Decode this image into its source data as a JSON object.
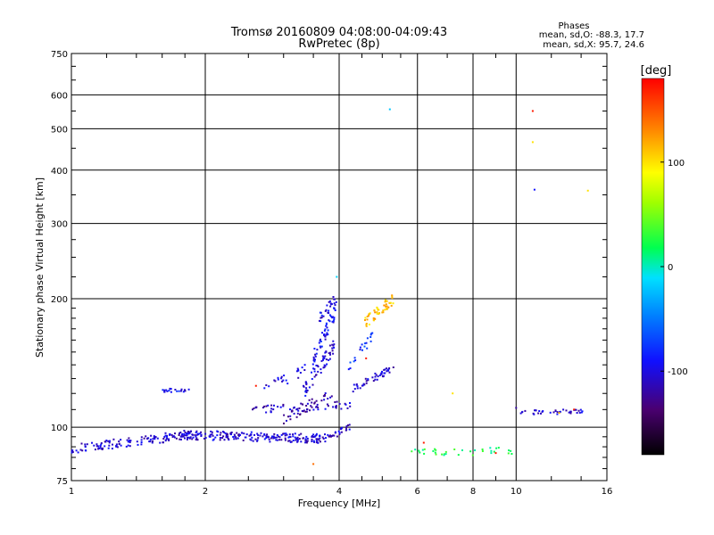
{
  "chart_data": {
    "type": "scatter",
    "title": "Tromsø 20160809 04:08:00-04:09:43",
    "subtitle": "RwPretec (8p)",
    "xlabel": "Frequency [MHz]",
    "ylabel": "Stationary phase Virtual Height [km]",
    "x_scale": "log",
    "y_scale": "log",
    "xlim": [
      1,
      16
    ],
    "ylim": [
      75,
      750
    ],
    "x_ticks": [
      1,
      2,
      4,
      6,
      8,
      10,
      16
    ],
    "x_tick_labels": [
      "1",
      "2",
      "4",
      "6",
      "8",
      "10",
      "16"
    ],
    "y_ticks": [
      75,
      100,
      200,
      300,
      400,
      500,
      600,
      750
    ],
    "y_tick_labels": [
      "75",
      "100",
      "200",
      "300",
      "400",
      "500",
      "600",
      "750"
    ],
    "grid": true,
    "stats": {
      "header": "Phases",
      "line_o": "mean, sd,O: -88.3, 17.7",
      "line_x": "mean, sd,X:  95.7, 24.6"
    },
    "colorbar": {
      "label": "[deg]",
      "range": [
        -180,
        180
      ],
      "ticks": [
        100,
        0,
        -100
      ],
      "tick_labels": [
        "100",
        "0",
        "-100"
      ]
    },
    "traces": [
      {
        "x": [
          1.0,
          1.85
        ],
        "y": [
          89,
          96
        ],
        "phase": -105,
        "n": 130,
        "yjit": 0.025
      },
      {
        "x": [
          1.75,
          3.8
        ],
        "y": [
          96,
          94
        ],
        "phase": -105,
        "n": 220,
        "yjit": 0.025
      },
      {
        "x": [
          3.8,
          4.25
        ],
        "y": [
          95,
          100
        ],
        "phase": -110,
        "n": 25,
        "yjit": 0.02
      },
      {
        "x": [
          1.6,
          1.85
        ],
        "y": [
          122,
          122
        ],
        "phase": -95,
        "n": 20,
        "yjit": 0.01
      },
      {
        "x": [
          2.55,
          4.3
        ],
        "y": [
          110,
          113
        ],
        "phase": -110,
        "n": 55,
        "yjit": 0.02
      },
      {
        "x": [
          2.7,
          3.5
        ],
        "y": [
          122,
          140
        ],
        "phase": -100,
        "n": 25,
        "yjit": 0.03
      },
      {
        "x": [
          3.0,
          3.9
        ],
        "y": [
          105,
          120
        ],
        "phase": -120,
        "n": 40,
        "yjit": 0.03
      },
      {
        "x": [
          3.3,
          3.9
        ],
        "y": [
          120,
          155
        ],
        "phase": -100,
        "n": 60,
        "yjit": 0.04
      },
      {
        "x": [
          3.5,
          3.95
        ],
        "y": [
          145,
          190
        ],
        "phase": -95,
        "n": 50,
        "yjit": 0.04
      },
      {
        "x": [
          3.6,
          3.95
        ],
        "y": [
          180,
          200
        ],
        "phase": -100,
        "n": 25,
        "yjit": 0.03
      },
      {
        "x": [
          4.3,
          5.3
        ],
        "y": [
          123,
          138
        ],
        "phase": -105,
        "n": 45,
        "yjit": 0.02
      },
      {
        "x": [
          4.2,
          4.9
        ],
        "y": [
          140,
          168
        ],
        "phase": -80,
        "n": 20,
        "yjit": 0.03
      },
      {
        "x": [
          4.55,
          5.3
        ],
        "y": [
          175,
          200
        ],
        "phase": 110,
        "n": 55,
        "yjit": 0.03
      },
      {
        "x": [
          5.8,
          9.8
        ],
        "y": [
          87,
          88
        ],
        "phase": 20,
        "n": 35,
        "yjit": 0.02
      },
      {
        "x": [
          10.0,
          14.2
        ],
        "y": [
          108,
          109
        ],
        "phase": -105,
        "n": 38,
        "yjit": 0.012
      }
    ],
    "isolated_points": [
      {
        "x": 5.2,
        "y": 555,
        "phase": -20
      },
      {
        "x": 10.9,
        "y": 550,
        "phase": 170
      },
      {
        "x": 10.9,
        "y": 465,
        "phase": 100
      },
      {
        "x": 11.0,
        "y": 360,
        "phase": -90
      },
      {
        "x": 14.5,
        "y": 358,
        "phase": 100
      },
      {
        "x": 3.95,
        "y": 225,
        "phase": -15
      },
      {
        "x": 7.2,
        "y": 120,
        "phase": 100
      },
      {
        "x": 10.0,
        "y": 111,
        "phase": -120
      },
      {
        "x": 3.5,
        "y": 82,
        "phase": 140
      },
      {
        "x": 2.6,
        "y": 125,
        "phase": 170
      },
      {
        "x": 4.6,
        "y": 145,
        "phase": 170
      },
      {
        "x": 6.2,
        "y": 92,
        "phase": 170
      },
      {
        "x": 9.0,
        "y": 87,
        "phase": 170
      },
      {
        "x": 12.5,
        "y": 108,
        "phase": 110
      },
      {
        "x": 13.5,
        "y": 110,
        "phase": 170
      }
    ]
  }
}
